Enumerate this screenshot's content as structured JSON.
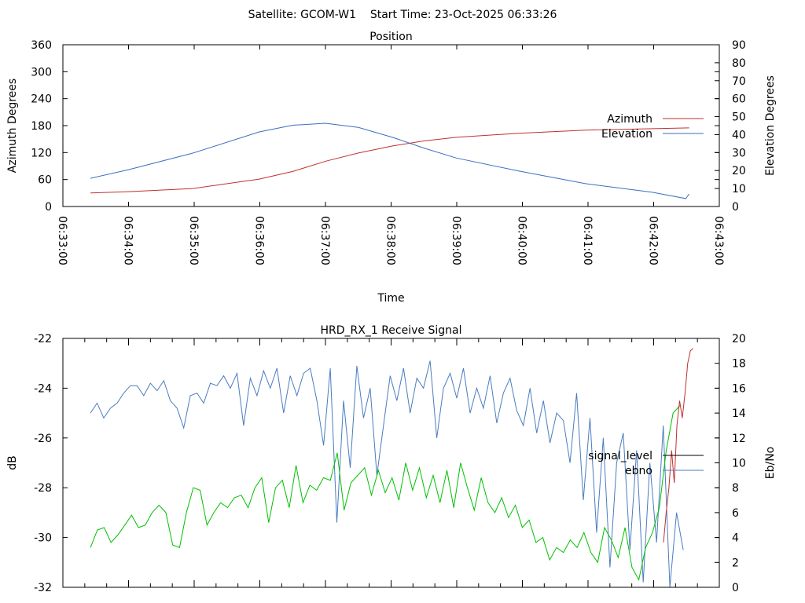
{
  "title": "Satellite: GCOM-W1    Start Time: 23-Oct-2025 06:33:26",
  "chart_data": [
    {
      "type": "line",
      "title": "Position",
      "xlabel": "Time",
      "ylabel": "Azimuth Degrees",
      "y2label": "Elevation Degrees",
      "xlim_minutes_after_0633": [
        0,
        10
      ],
      "ylim": [
        0,
        360
      ],
      "y2lim": [
        0,
        90
      ],
      "x_tick_labels": [
        "06:33:00",
        "06:34:00",
        "06:35:00",
        "06:36:00",
        "06:37:00",
        "06:38:00",
        "06:39:00",
        "06:40:00",
        "06:41:00",
        "06:42:00",
        "06:43:00"
      ],
      "y_tick_labels": [
        "0",
        "60",
        "120",
        "180",
        "240",
        "300",
        "360"
      ],
      "y2_tick_labels": [
        "0",
        "10",
        "20",
        "30",
        "40",
        "50",
        "60",
        "70",
        "80",
        "90"
      ],
      "legend_position": "right",
      "series": [
        {
          "name": "Azimuth",
          "axis": "y",
          "color": "#c03030",
          "x": [
            0.42,
            1.0,
            1.98,
            2.99,
            3.5,
            4.01,
            4.5,
            5.03,
            5.5,
            5.99,
            6.95,
            7.96,
            9.54
          ],
          "y": [
            30,
            33,
            40,
            61,
            78,
            101,
            119,
            135,
            146,
            154,
            163,
            170,
            175
          ]
        },
        {
          "name": "Elevation",
          "axis": "y2",
          "color": "#3a6fc0",
          "x": [
            0.42,
            1.0,
            1.98,
            2.99,
            3.5,
            4.0,
            4.5,
            5.03,
            5.5,
            5.99,
            6.95,
            7.96,
            8.98,
            9.49,
            9.54
          ],
          "y": [
            15.7,
            20.5,
            29.7,
            41.5,
            45.2,
            46.3,
            44.0,
            38.4,
            32.5,
            27,
            19.7,
            12.7,
            7.9,
            4.4,
            7
          ]
        }
      ]
    },
    {
      "type": "line",
      "title": "HRD_RX_1 Receive Signal",
      "ylabel": "dB",
      "y2label": "Eb/No",
      "xlim_minutes_after_0633": [
        0,
        10
      ],
      "ylim": [
        -32,
        -22
      ],
      "y2lim": [
        0,
        20
      ],
      "y_tick_labels": [
        "-32",
        "-30",
        "-28",
        "-26",
        "-24",
        "-22"
      ],
      "y2_tick_labels": [
        "0",
        "2",
        "4",
        "6",
        "8",
        "10",
        "12",
        "14",
        "16",
        "18",
        "20"
      ],
      "legend_position": "right",
      "legend": [
        {
          "name": "signal_level",
          "color": "#000000"
        },
        {
          "name": "ebno",
          "color": "#4a7cc0"
        }
      ],
      "series": [
        {
          "name": "trace-blue",
          "color": "#4a7cc0",
          "t_range": [
            0.42,
            9.45
          ],
          "y": [
            -25,
            -24.6,
            -25.2,
            -24.8,
            -24.6,
            -24.2,
            -23.9,
            -23.9,
            -24.3,
            -23.8,
            -24.1,
            -23.7,
            -24.5,
            -24.8,
            -25.6,
            -24.3,
            -24.2,
            -24.6,
            -23.8,
            -23.9,
            -23.5,
            -24.0,
            -23.4,
            -25.5,
            -23.6,
            -24.3,
            -23.3,
            -24.0,
            -23.2,
            -25.0,
            -23.5,
            -24.3,
            -23.4,
            -23.2,
            -24.5,
            -26.3,
            -23.2,
            -29.4,
            -24.5,
            -27.2,
            -23.1,
            -25.2,
            -24.0,
            -27.5,
            -25.5,
            -23.5,
            -24.5,
            -23.2,
            -25.0,
            -23.6,
            -24.0,
            -22.9,
            -26.0,
            -24.0,
            -23.4,
            -24.4,
            -23.2,
            -25.0,
            -24.0,
            -24.8,
            -23.5,
            -25.4,
            -24.2,
            -23.6,
            -24.9,
            -25.5,
            -24.0,
            -25.8,
            -24.5,
            -26.2,
            -25.0,
            -25.3,
            -27.0,
            -24.2,
            -28.5,
            -25.2,
            -29.8,
            -26.0,
            -31.2,
            -27.0,
            -25.8,
            -30.5,
            -26.5,
            -31.8,
            -27.0,
            -30.2,
            -25.5,
            -32,
            -29.0,
            -30.5
          ]
        },
        {
          "name": "trace-green",
          "color": "#00c000",
          "t_range": [
            0.42,
            9.4
          ],
          "y": [
            -30.4,
            -29.7,
            -29.6,
            -30.2,
            -29.9,
            -29.5,
            -29.1,
            -29.6,
            -29.5,
            -29.0,
            -28.7,
            -29.0,
            -30.3,
            -30.4,
            -29.0,
            -28.0,
            -28.1,
            -29.5,
            -29.0,
            -28.6,
            -28.8,
            -28.4,
            -28.3,
            -28.8,
            -28.0,
            -27.6,
            -29.4,
            -28.0,
            -27.7,
            -28.8,
            -27.1,
            -28.6,
            -27.9,
            -28.1,
            -27.6,
            -27.7,
            -26.6,
            -28.9,
            -27.8,
            -27.5,
            -27.2,
            -28.3,
            -27.3,
            -28.2,
            -27.6,
            -28.5,
            -27.0,
            -28.1,
            -27.2,
            -28.4,
            -27.5,
            -28.6,
            -27.3,
            -28.8,
            -27.0,
            -28.0,
            -28.9,
            -27.6,
            -28.6,
            -29.0,
            -28.4,
            -29.2,
            -28.7,
            -29.6,
            -29.3,
            -30.2,
            -30.0,
            -30.9,
            -30.4,
            -30.6,
            -30.1,
            -30.4,
            -29.8,
            -30.6,
            -31.0,
            -29.6,
            -30.1,
            -30.8,
            -29.6,
            -31.2,
            -31.7,
            -30.4,
            -29.8,
            -28.8,
            -26.5,
            -25.0,
            -24.7
          ]
        },
        {
          "name": "trace-red",
          "color": "#c03030",
          "t_range": [
            9.15,
            9.6
          ],
          "y": [
            -30.2,
            -29.0,
            -28.0,
            -26.5,
            -27.8,
            -25.5,
            -24.5,
            -25.2,
            -24.2,
            -23.0,
            -22.5,
            -22.4
          ]
        }
      ]
    }
  ]
}
